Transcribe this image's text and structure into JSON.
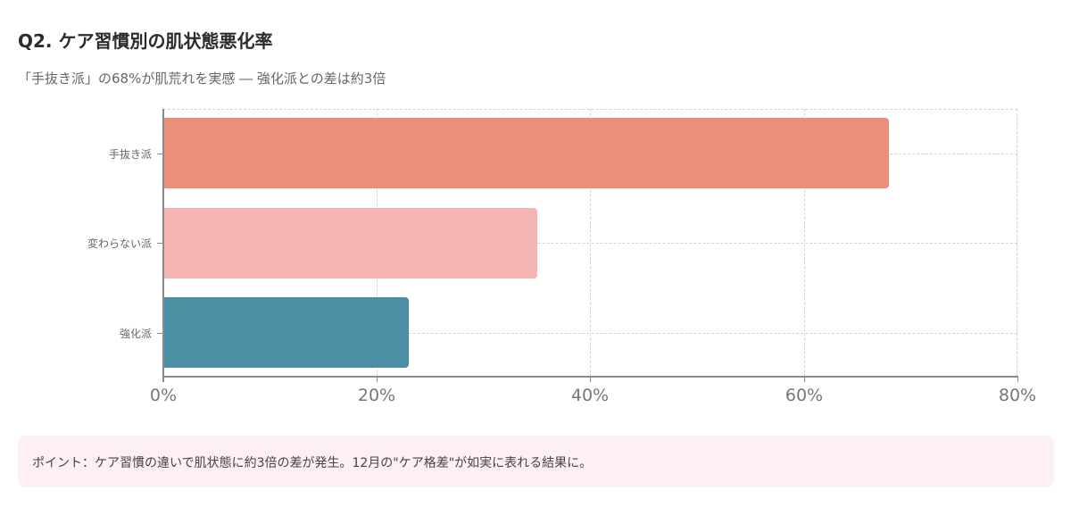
{
  "header": {
    "title": "Q2. ケア習慣別の肌状態悪化率",
    "subtitle": "「手抜き派」の68%が肌荒れを実感 ― 強化派との差は約3倍"
  },
  "chart_data": {
    "type": "bar",
    "orientation": "horizontal",
    "title": "Q2. ケア習慣別の肌状態悪化率",
    "subtitle": "「手抜き派」の68%が肌荒れを実感 ― 強化派との差は約3倍",
    "categories": [
      "手抜き派",
      "変わらない派",
      "強化派"
    ],
    "values": [
      68,
      35,
      23
    ],
    "colors": [
      "#ea8f7a",
      "#f5b5b1",
      "#4b8fa5"
    ],
    "xlabel": "",
    "ylabel": "",
    "xlim": [
      0,
      80
    ],
    "xticks": [
      "0%",
      "20%",
      "40%",
      "60%",
      "80%"
    ],
    "grid": true,
    "legend": "none"
  },
  "note": {
    "text": "ポイント：ケア習慣の違いで肌状態に約3倍の差が発生。12月の\"ケア格差\"が如実に表れる結果に。"
  }
}
